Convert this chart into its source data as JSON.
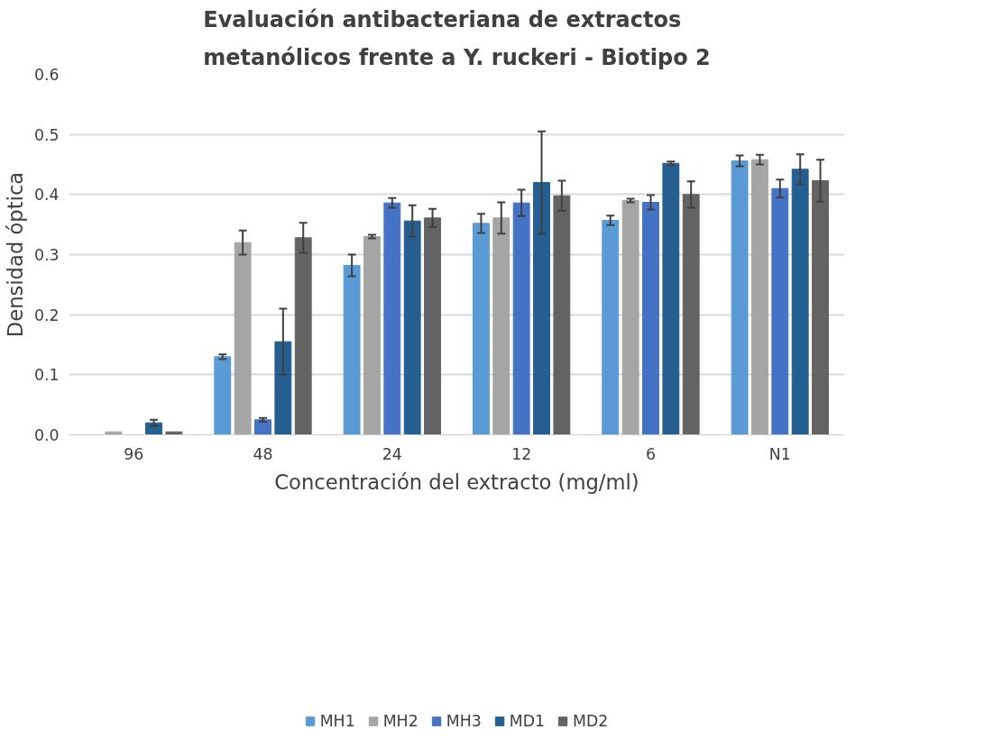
{
  "chart_data": {
    "type": "bar",
    "title": "Evaluación antibacteriana de extractos\nmetanólicos frente a Y. ruckeri - Biotipo 2",
    "xlabel": "Concentración del extracto (mg/ml)",
    "ylabel": "Densidad óptica",
    "categories": [
      "96",
      "48",
      "24",
      "12",
      "6",
      "N1"
    ],
    "series": [
      {
        "name": "MH1",
        "color": "#5b9bd5",
        "values": [
          0,
          0.13,
          0.282,
          0.352,
          0.357,
          0.456
        ],
        "errors": [
          null,
          0.004,
          0.018,
          0.016,
          0.008,
          0.009
        ]
      },
      {
        "name": "MH2",
        "color": "#a5a5a5",
        "values": [
          0.005,
          0.32,
          0.33,
          0.361,
          0.39,
          0.458
        ],
        "errors": [
          null,
          0.02,
          0.003,
          0.026,
          0.003,
          0.008
        ]
      },
      {
        "name": "MH3",
        "color": "#4472c4",
        "values": [
          0,
          0.025,
          0.386,
          0.386,
          0.387,
          0.41
        ],
        "errors": [
          null,
          0.003,
          0.008,
          0.022,
          0.012,
          0.015
        ]
      },
      {
        "name": "MD1",
        "color": "#255e91",
        "values": [
          0.02,
          0.155,
          0.356,
          0.42,
          0.452,
          0.442
        ],
        "errors": [
          0.005,
          0.055,
          0.026,
          0.085,
          0.003,
          0.025
        ]
      },
      {
        "name": "MD2",
        "color": "#636363",
        "values": [
          0.005,
          0.328,
          0.361,
          0.398,
          0.4,
          0.423
        ],
        "errors": [
          null,
          0.025,
          0.015,
          0.025,
          0.022,
          0.035
        ]
      }
    ],
    "ylim": [
      0,
      0.6
    ],
    "yticks": [
      {
        "value": 0,
        "label": "0.0"
      },
      0.1,
      0.2,
      0.3,
      0.4,
      0.5,
      0.6
    ],
    "grid": "y",
    "legend": "bottom"
  }
}
